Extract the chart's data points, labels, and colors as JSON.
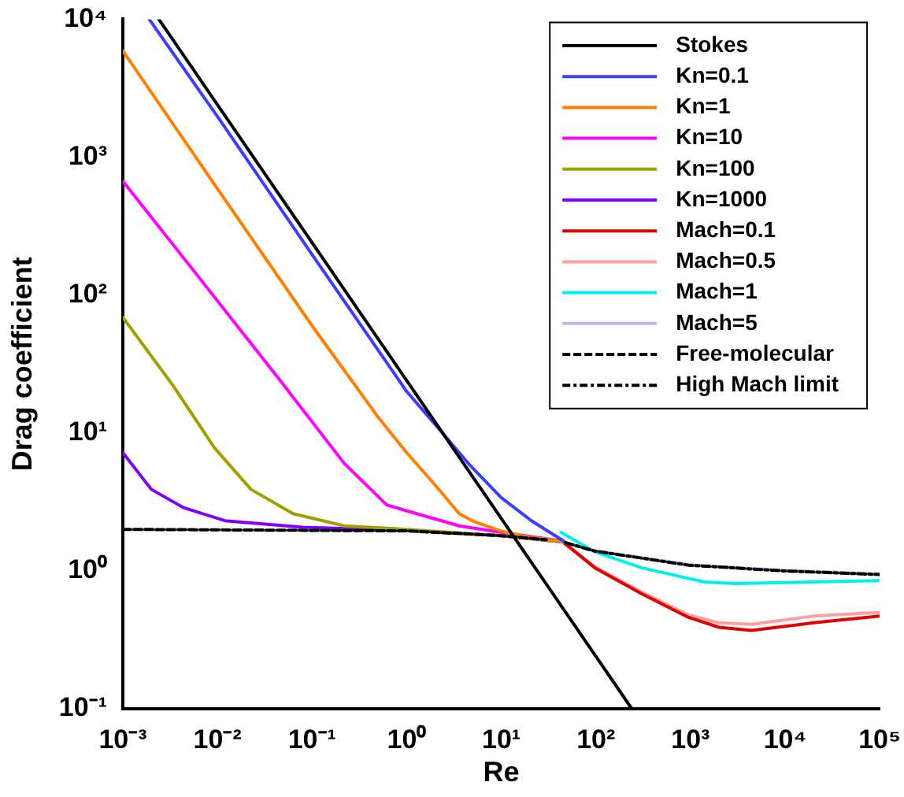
{
  "chart_data": {
    "type": "line",
    "xlabel": "Re",
    "ylabel": "Drag coefficient",
    "log": "xy",
    "xlim": [
      0.001,
      100000
    ],
    "ylim": [
      0.1,
      10000
    ],
    "xticks": [
      {
        "value": 0.001,
        "label": "10⁻³"
      },
      {
        "value": 0.01,
        "label": "10⁻²"
      },
      {
        "value": 0.1,
        "label": "10⁻¹"
      },
      {
        "value": 1,
        "label": "10⁰"
      },
      {
        "value": 10,
        "label": "10¹"
      },
      {
        "value": 100,
        "label": "10²"
      },
      {
        "value": 1000,
        "label": "10³"
      },
      {
        "value": 10000,
        "label": "10⁴"
      },
      {
        "value": 100000,
        "label": "10⁵"
      }
    ],
    "yticks": [
      {
        "value": 0.1,
        "label": "10⁻¹"
      },
      {
        "value": 1,
        "label": "10⁰"
      },
      {
        "value": 10,
        "label": "10¹"
      },
      {
        "value": 100,
        "label": "10²"
      },
      {
        "value": 1000,
        "label": "10³"
      },
      {
        "value": 10000,
        "label": "10⁴"
      }
    ],
    "grid": false,
    "legend": "top right",
    "marker": "none",
    "series": [
      {
        "name": "Stokes",
        "color": "#000000",
        "x": [
          0.0024,
          1,
          240
        ],
        "values": [
          10000,
          24,
          0.1
        ]
      },
      {
        "name": "Kn=0.1",
        "color": "#3c3cff",
        "x": [
          0.0019,
          0.01,
          0.1,
          1,
          2.2,
          4.7,
          10,
          21,
          46
        ],
        "values": [
          10000,
          1970,
          197,
          20,
          10.7,
          5.8,
          3.4,
          2.3,
          1.64
        ]
      },
      {
        "name": "Kn=1",
        "color": "#ff8000",
        "x": [
          0.001,
          0.01,
          0.1,
          0.5,
          1,
          2,
          3.6,
          5,
          10,
          20,
          46
        ],
        "values": [
          5900,
          590,
          60,
          13,
          7.2,
          4.2,
          2.6,
          2.3,
          1.94,
          1.75,
          1.64
        ]
      },
      {
        "name": "Kn=10",
        "color": "#ff00ff",
        "x": [
          0.001,
          0.0064,
          0.043,
          0.22,
          0.62,
          3.6,
          10,
          46
        ],
        "values": [
          670,
          134,
          25.5,
          6,
          3,
          2.12,
          1.9,
          1.64
        ]
      },
      {
        "name": "Kn=100",
        "color": "#a0a000",
        "x": [
          0.001,
          0.0034,
          0.0093,
          0.0226,
          0.063,
          0.22,
          1,
          10,
          46
        ],
        "values": [
          69,
          22,
          7.8,
          3.9,
          2.6,
          2.12,
          2,
          1.8,
          1.62
        ]
      },
      {
        "name": "Kn=1000",
        "color": "#8000ff",
        "x": [
          0.001,
          0.002,
          0.0044,
          0.012,
          0.08,
          1,
          10,
          46
        ],
        "values": [
          7.2,
          3.9,
          2.87,
          2.31,
          2.07,
          1.97,
          1.8,
          1.62
        ]
      },
      {
        "name": "Mach=0.1",
        "color": "#e00000",
        "x": [
          46,
          98,
          309,
          955,
          2000,
          4400,
          20000,
          100000
        ],
        "values": [
          1.6,
          1.05,
          0.68,
          0.46,
          0.39,
          0.37,
          0.42,
          0.47
        ]
      },
      {
        "name": "Mach=0.5",
        "color": "#ffa0a0",
        "x": [
          46,
          98,
          309,
          955,
          2000,
          4400,
          20000,
          100000
        ],
        "values": [
          1.6,
          1.07,
          0.7,
          0.48,
          0.42,
          0.41,
          0.47,
          0.5
        ]
      },
      {
        "name": "Mach=1",
        "color": "#00f0f0",
        "x": [
          43,
          98,
          309,
          1400,
          3000,
          100000
        ],
        "values": [
          1.9,
          1.37,
          1.05,
          0.83,
          0.81,
          0.85
        ]
      },
      {
        "name": "Mach=5",
        "color": "#b8b8f0",
        "x": [
          48,
          98,
          955,
          9500,
          100000
        ],
        "values": [
          1.6,
          1.4,
          1.11,
          1.01,
          0.95
        ]
      },
      {
        "name": "Free-molecular",
        "color": "#000000",
        "line_style": "dashed",
        "x": [
          0.001,
          1,
          10,
          30
        ],
        "values": [
          2,
          1.95,
          1.8,
          1.68
        ]
      },
      {
        "name": "High Mach limit",
        "color": "#000000",
        "line_style": "dashdot",
        "x": [
          48,
          98,
          955,
          9500,
          100000
        ],
        "values": [
          1.6,
          1.39,
          1.1,
          1,
          0.94
        ]
      }
    ]
  }
}
